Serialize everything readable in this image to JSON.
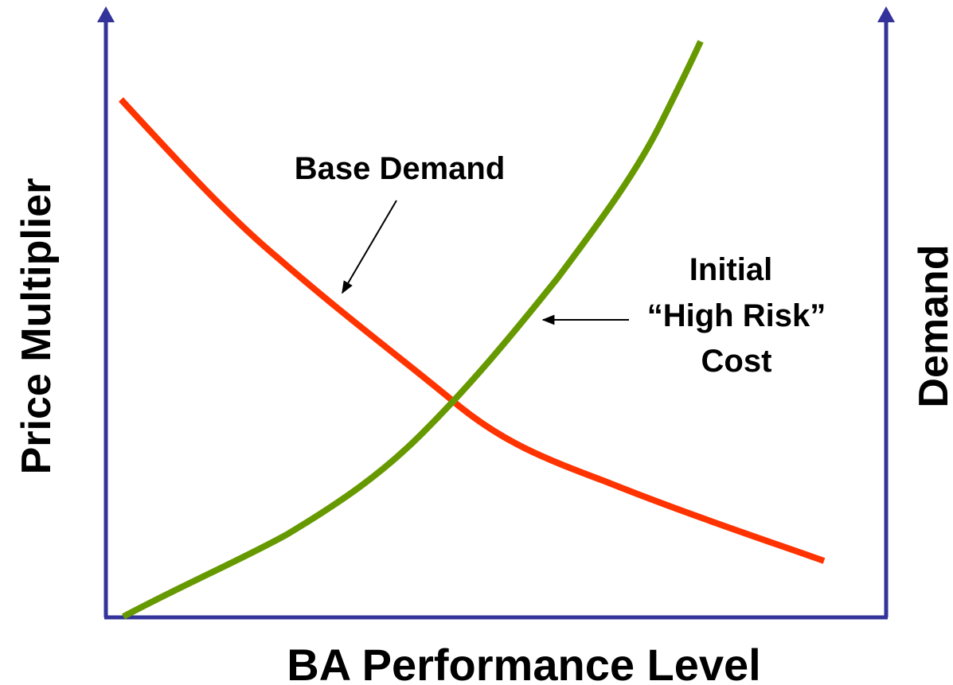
{
  "axes": {
    "y_left": "Price Multiplier",
    "y_right": "Demand",
    "x": "BA Performance Level"
  },
  "annotations": {
    "base_demand": "Base Demand",
    "high_risk_cost": [
      "Initial",
      "“High Risk”",
      "Cost"
    ]
  }
}
